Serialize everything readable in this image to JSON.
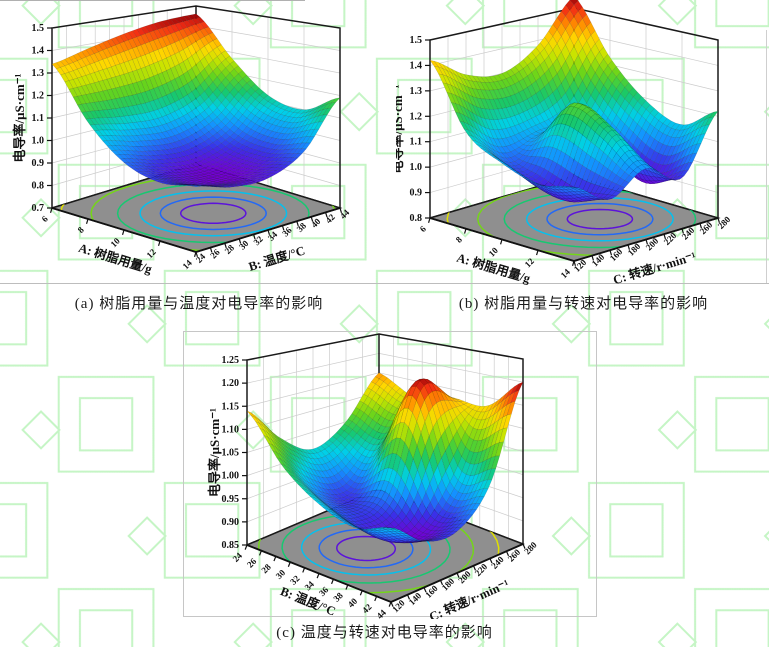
{
  "page": {
    "background": "#ffffff",
    "watermark_color": "#7ee87e",
    "floor_color": "#8f8f8f",
    "colormap": [
      [
        "0.00",
        "#7300d1"
      ],
      [
        "0.10",
        "#3a30e8"
      ],
      [
        "0.22",
        "#1490ff"
      ],
      [
        "0.33",
        "#00d0e8"
      ],
      [
        "0.44",
        "#18c86a"
      ],
      [
        "0.55",
        "#66d41c"
      ],
      [
        "0.66",
        "#c8e400"
      ],
      [
        "0.75",
        "#ffd800"
      ],
      [
        "0.84",
        "#ff8c00"
      ],
      [
        "0.93",
        "#f22c14"
      ],
      [
        "1.00",
        "#8f0005"
      ]
    ]
  },
  "captions": {
    "a": "(a) 树脂用量与温度对电导率的影响",
    "b": "(b) 树脂用量与转速对电导率的影响",
    "c": "(c) 温度与转速对电导率的影响"
  },
  "chart_data": [
    {
      "id": "a",
      "type": "surface3d",
      "caption": "(a) 树脂用量与温度对电导率的影响",
      "x_axis": {
        "label": "A: 树脂用量/g",
        "ticks": [
          "6",
          "8",
          "10",
          "12",
          "14"
        ],
        "range": [
          6,
          14
        ]
      },
      "y_axis": {
        "label": "B: 温度/°C",
        "ticks": [
          "24",
          "26",
          "28",
          "30",
          "32",
          "34",
          "36",
          "38",
          "40",
          "42",
          "44"
        ],
        "range": [
          24,
          44
        ]
      },
      "z_axis": {
        "label": "电导率/μS·cm⁻¹",
        "ticks": [
          "0.7",
          "0.8",
          "0.9",
          "1.0",
          "1.1",
          "1.2",
          "1.3",
          "1.4",
          "1.5"
        ],
        "range": [
          0.7,
          1.5
        ]
      },
      "surface_z_grid": [
        [
          1.34,
          1.38,
          1.42,
          1.45,
          1.46
        ],
        [
          1.13,
          1.1,
          1.09,
          1.14,
          1.27
        ],
        [
          1.0,
          0.95,
          0.93,
          0.99,
          1.13
        ],
        [
          0.96,
          0.91,
          0.9,
          0.96,
          1.1
        ],
        [
          0.99,
          0.94,
          0.93,
          1.0,
          1.19
        ]
      ],
      "contour": {
        "center_uv": [
          0.62,
          0.5
        ],
        "radii": [
          0.16,
          0.26,
          0.36,
          0.47,
          0.6,
          0.75,
          0.92,
          1.1
        ]
      }
    },
    {
      "id": "b",
      "type": "surface3d",
      "caption": "(b) 树脂用量与转速对电导率的影响",
      "x_axis": {
        "label": "A: 树脂用量/g",
        "ticks": [
          "6",
          "8",
          "10",
          "12",
          "14"
        ],
        "range": [
          6,
          14
        ]
      },
      "y_axis": {
        "label": "C: 转速/r·min⁻¹",
        "ticks": [
          "120",
          "140",
          "160",
          "180",
          "200",
          "220",
          "240",
          "260",
          "280"
        ],
        "range": [
          120,
          280
        ]
      },
      "z_axis": {
        "label": "电导率/μS·cm⁻¹",
        "ticks": [
          "0.8",
          "0.9",
          "1.0",
          "1.1",
          "1.2",
          "1.3",
          "1.4",
          "1.5"
        ],
        "range": [
          0.8,
          1.5
        ]
      },
      "surface_z_grid": [
        [
          1.42,
          1.33,
          1.3,
          1.38,
          1.55
        ],
        [
          1.18,
          1.07,
          1.1,
          1.13,
          1.33
        ],
        [
          1.1,
          1.0,
          1.26,
          1.02,
          1.19
        ],
        [
          1.06,
          0.96,
          1.2,
          0.94,
          1.13
        ],
        [
          1.09,
          1.0,
          1.08,
          1.0,
          1.22
        ]
      ],
      "contour": {
        "center_uv": [
          0.6,
          0.58
        ],
        "radii": [
          0.16,
          0.26,
          0.36,
          0.47,
          0.6,
          0.75,
          0.92,
          1.1
        ]
      }
    },
    {
      "id": "c",
      "type": "surface3d",
      "caption": "(c) 温度与转速对电导率的影响",
      "x_axis": {
        "label": "B: 温度/°C",
        "ticks": [
          "24",
          "26",
          "28",
          "30",
          "32",
          "34",
          "36",
          "38",
          "40",
          "42",
          "44"
        ],
        "range": [
          24,
          44
        ]
      },
      "y_axis": {
        "label": "C: 转速/r·min⁻¹",
        "ticks": [
          "120",
          "140",
          "160",
          "180",
          "200",
          "220",
          "240",
          "260",
          "280"
        ],
        "range": [
          120,
          280
        ]
      },
      "z_axis": {
        "label": "电导率/μS·cm⁻¹",
        "ticks": [
          "0.85",
          "0.90",
          "0.95",
          "1.00",
          "1.05",
          "1.10",
          "1.15",
          "1.20",
          "1.25"
        ],
        "range": [
          0.85,
          1.25
        ]
      },
      "surface_z_grid": [
        [
          1.14,
          1.06,
          1.01,
          1.05,
          1.15
        ],
        [
          1.05,
          0.97,
          0.94,
          1.03,
          1.11
        ],
        [
          1.0,
          0.94,
          0.97,
          1.19,
          1.13
        ],
        [
          0.98,
          0.92,
          0.91,
          0.99,
          1.13
        ],
        [
          1.01,
          0.95,
          0.94,
          1.01,
          1.2
        ]
      ],
      "contour": {
        "center_uv": [
          0.46,
          0.4
        ],
        "radii": [
          0.15,
          0.24,
          0.33,
          0.43,
          0.55,
          0.68,
          0.83,
          1.0
        ]
      }
    }
  ]
}
